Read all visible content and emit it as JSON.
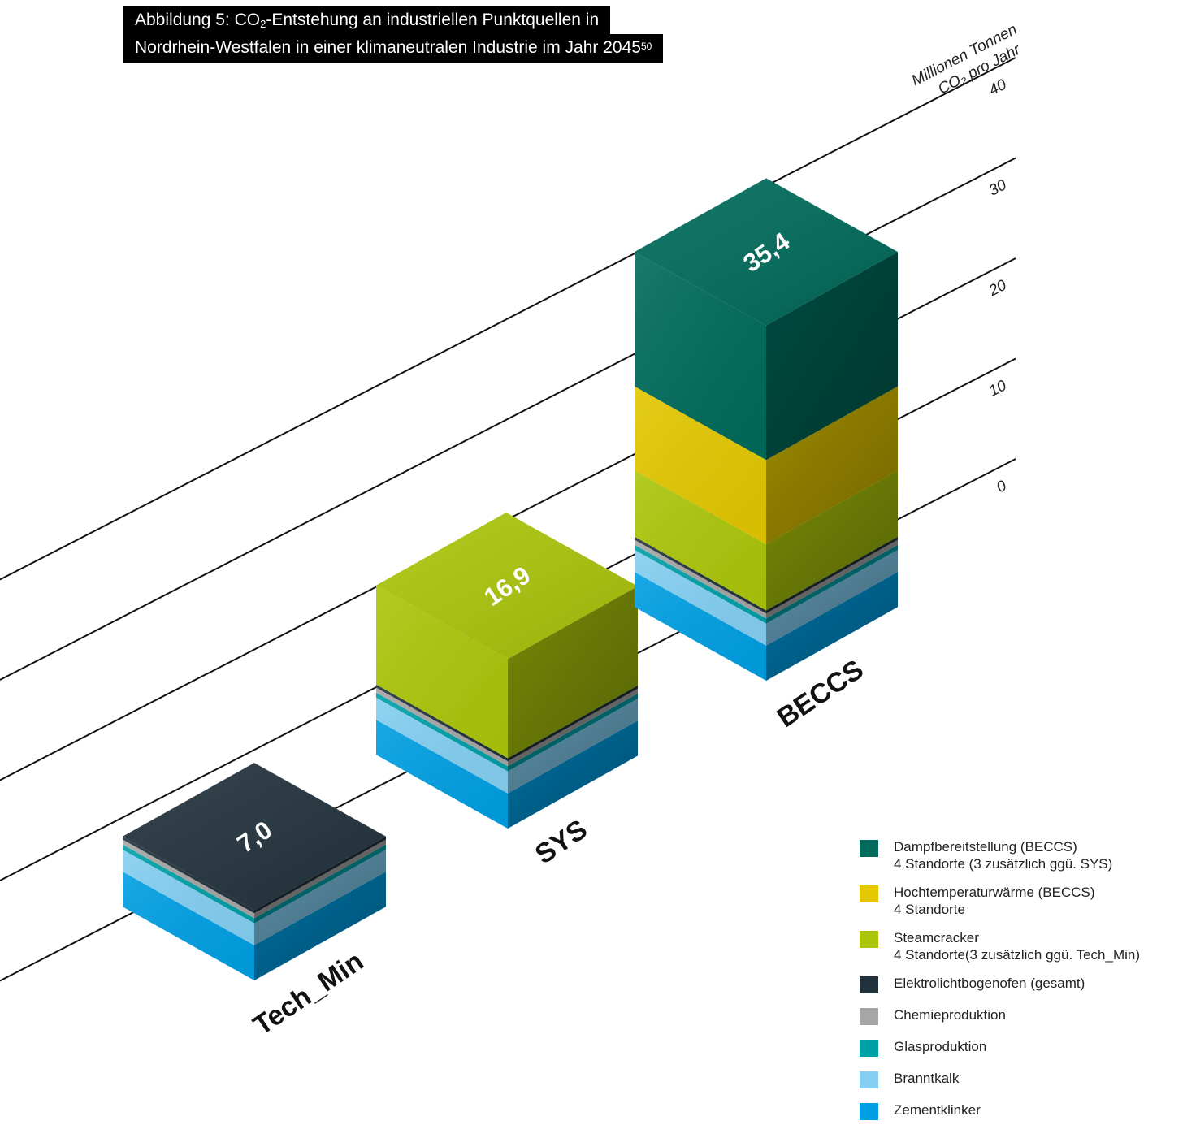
{
  "title": {
    "line1_prefix": "Abbildung 5: CO",
    "line1_subscript": "2",
    "line1_suffix": "-Entstehung an industriellen Punktquellen in",
    "line2_text": "Nordrhein-Westfalen in einer klimaneutralen Industrie im Jahr 2045",
    "line2_footnote": "50"
  },
  "axis": {
    "label_line1": "Millionen Tonnen",
    "label_line2": "CO₂ pro Jahr"
  },
  "chart_data": {
    "type": "bar",
    "stacked": true,
    "style": "isometric-3d",
    "ylabel": "Millionen Tonnen CO₂ pro Jahr",
    "ylim": [
      0,
      40
    ],
    "yticks": [
      0,
      10,
      20,
      30,
      40
    ],
    "categories": [
      "Tech_Min",
      "SYS",
      "BECCS"
    ],
    "totals": [
      7.0,
      16.9,
      35.4
    ],
    "total_labels": [
      "7,0",
      "16,9",
      "35,4"
    ],
    "series": [
      {
        "name": "Zementklinker",
        "color": "#009fe3",
        "values": [
          3.5,
          3.5,
          3.5
        ]
      },
      {
        "name": "Branntkalk",
        "color": "#84cff2",
        "values": [
          2.2,
          2.2,
          2.2
        ]
      },
      {
        "name": "Glasproduktion",
        "color": "#00a0a8",
        "values": [
          0.5,
          0.5,
          0.5
        ]
      },
      {
        "name": "Chemieproduktion",
        "color": "#a6a6a6",
        "values": [
          0.5,
          0.5,
          0.5
        ]
      },
      {
        "name": "Elektrolichtbogenofen (gesamt)",
        "color": "#22323c",
        "values": [
          0.3,
          0.3,
          0.3
        ]
      },
      {
        "name": "Steamcracker",
        "color": "#abc60a",
        "values": [
          0,
          9.9,
          6.6
        ]
      },
      {
        "name": "Hochtemperaturwärme (BECCS)",
        "color": "#e3c700",
        "values": [
          0,
          0,
          8.4
        ]
      },
      {
        "name": "Dampfbereitstellung (BECCS)",
        "color": "#006b5b",
        "values": [
          0,
          0,
          13.4
        ]
      }
    ]
  },
  "legend": [
    {
      "label": "Dampfbereitstellung (BECCS)",
      "sub": "4 Standorte (3 zusätzlich ggü. SYS)",
      "color": "#006b5b"
    },
    {
      "label": "Hochtemperaturwärme (BECCS)",
      "sub": "4 Standorte",
      "color": "#e3c700"
    },
    {
      "label": "Steamcracker",
      "sub": "4 Standorte(3 zusätzlich ggü. Tech_Min)",
      "color": "#abc60a"
    },
    {
      "label": "Elektrolichtbogenofen (gesamt)",
      "sub": "",
      "color": "#22323c"
    },
    {
      "label": "Chemieproduktion",
      "sub": "",
      "color": "#a6a6a6"
    },
    {
      "label": "Glasproduktion",
      "sub": "",
      "color": "#00a0a8"
    },
    {
      "label": "Branntkalk",
      "sub": "",
      "color": "#84cff2"
    },
    {
      "label": "Zementklinker",
      "sub": "",
      "color": "#009fe3"
    }
  ]
}
